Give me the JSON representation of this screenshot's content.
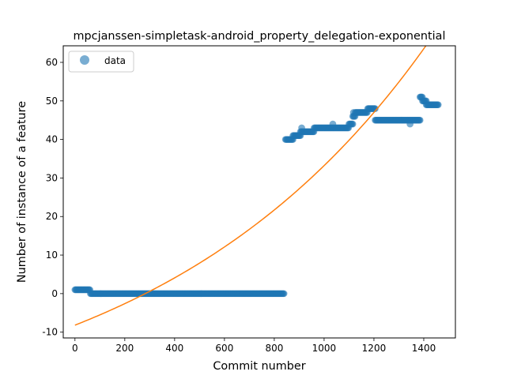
{
  "chart_data": {
    "type": "scatter",
    "title": "mpcjanssen-simpletask-android_property_delegation-exponential",
    "xlabel": "Commit number",
    "ylabel": "Number of instance of a feature",
    "xlim": [
      -47,
      1527
    ],
    "ylim": [
      -11.5,
      64.3
    ],
    "x_ticks": [
      0,
      200,
      400,
      600,
      800,
      1000,
      1200,
      1400
    ],
    "y_ticks": [
      -10,
      0,
      10,
      20,
      30,
      40,
      50,
      60
    ],
    "grid": false,
    "legend": {
      "position": "top-left",
      "entries": [
        "data"
      ]
    },
    "colors": {
      "data": "#1f77b4",
      "fit": "#ff7f0e"
    },
    "series": [
      {
        "name": "data",
        "kind": "scatter",
        "segments": [
          {
            "x_start": 0,
            "x_end": 62,
            "y": 1
          },
          {
            "x_start": 62,
            "x_end": 840,
            "y": 0
          },
          {
            "x_start": 845,
            "x_end": 875,
            "y": 40
          },
          {
            "x_start": 875,
            "x_end": 905,
            "y": 41
          },
          {
            "x_start": 905,
            "x_end": 960,
            "y": 42
          },
          {
            "x_start": 960,
            "x_end": 1100,
            "y": 43
          },
          {
            "x_start": 1100,
            "x_end": 1115,
            "y": 44
          },
          {
            "x_start": 1115,
            "x_end": 1125,
            "y": 46
          },
          {
            "x_start": 1125,
            "x_end": 1175,
            "y": 47
          },
          {
            "x_start": 1175,
            "x_end": 1205,
            "y": 48
          },
          {
            "x_start": 1205,
            "x_end": 1385,
            "y": 45
          },
          {
            "x_start": 1385,
            "x_end": 1395,
            "y": 51
          },
          {
            "x_start": 1395,
            "x_end": 1410,
            "y": 50
          },
          {
            "x_start": 1410,
            "x_end": 1460,
            "y": 49
          }
        ],
        "outliers": [
          {
            "x": 910,
            "y": 43
          },
          {
            "x": 1035,
            "y": 44
          },
          {
            "x": 1118,
            "y": 47
          },
          {
            "x": 1345,
            "y": 44
          }
        ]
      },
      {
        "kind": "line",
        "model": "exponential",
        "params": {
          "a": 28.12,
          "b": 0.000905,
          "c": -36.3
        },
        "x_range": [
          0,
          1457
        ]
      }
    ]
  }
}
